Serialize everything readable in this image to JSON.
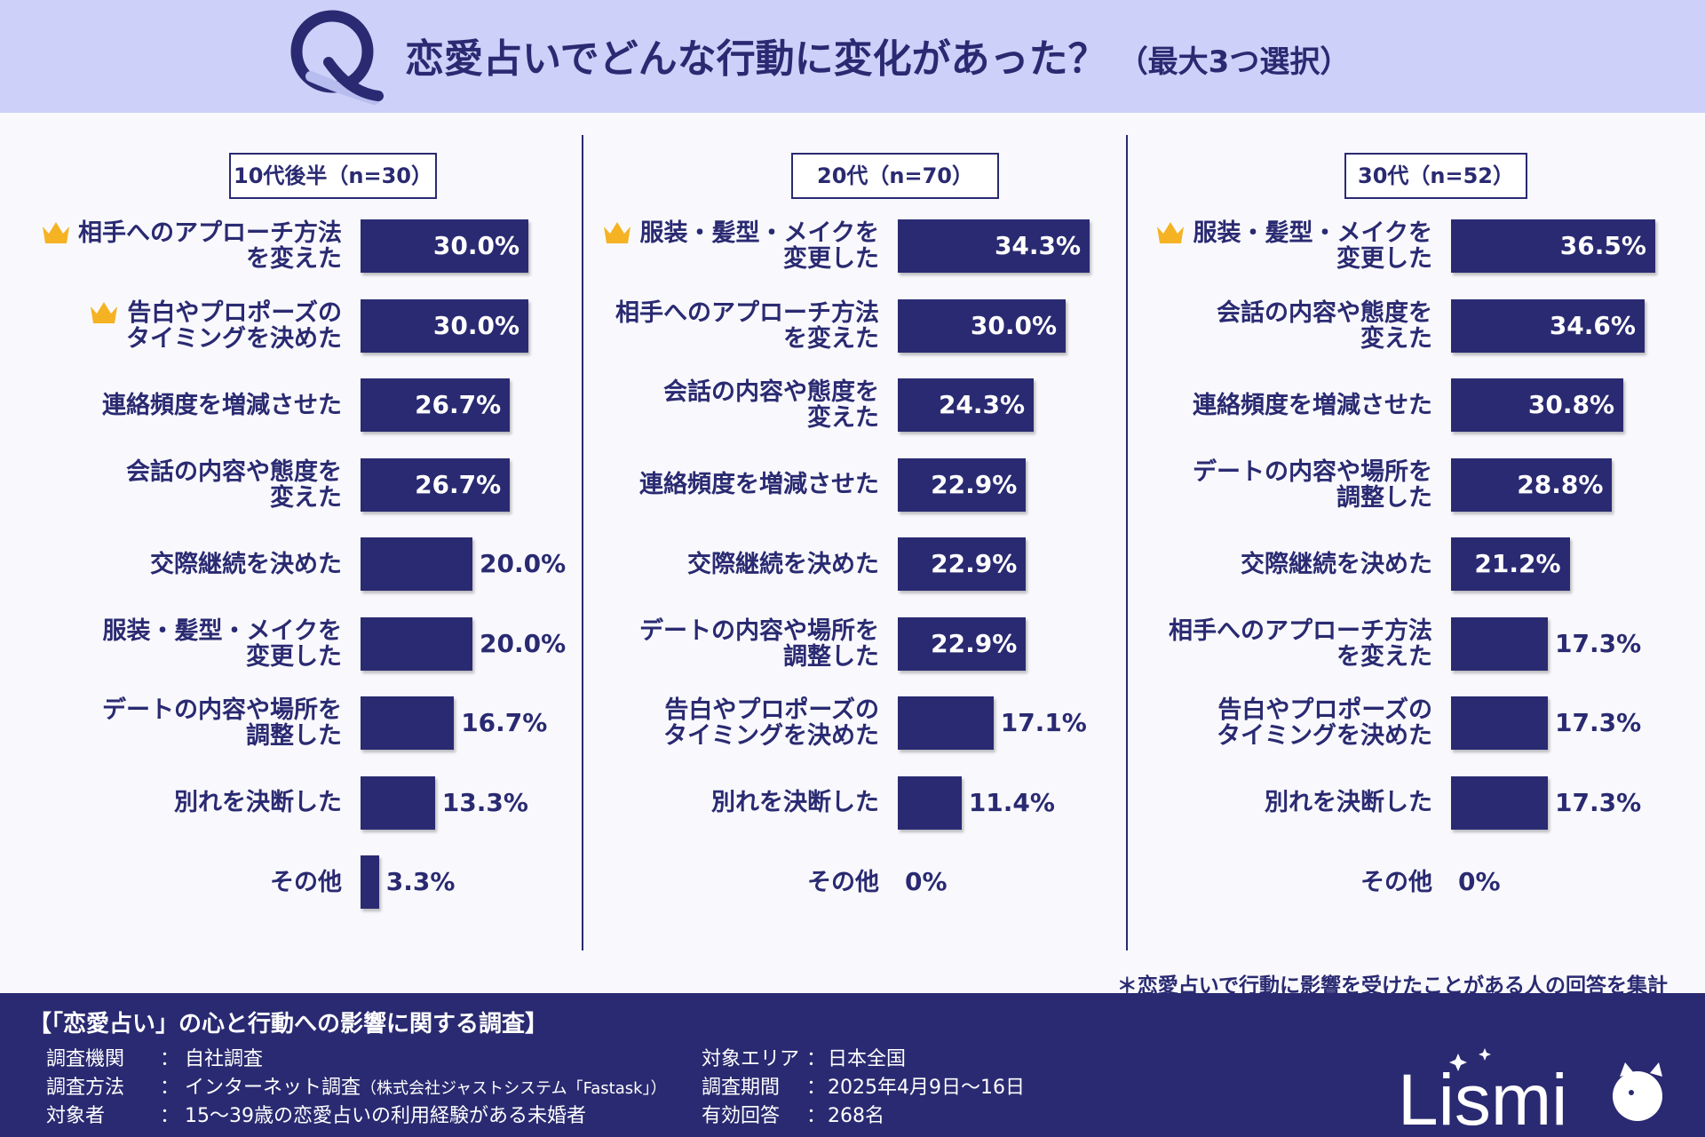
{
  "header": {
    "title": "恋愛占いでどんな行動に変化があった？",
    "subtitle": "（最大3つ選択）",
    "q_letter": "Q"
  },
  "note": "＊恋愛占いで行動に影響を受けたことがある人の回答を集計",
  "chart_data": [
    {
      "type": "bar",
      "orientation": "horizontal",
      "group": "10代後半（n=30）",
      "unit": "%",
      "categories": [
        "相手へのアプローチ方法\nを変えた",
        "告白やプロポーズの\nタイミングを決めた",
        "連絡頻度を増減させた",
        "会話の内容や態度を\n変えた",
        "交際継続を決めた",
        "服装・髪型・メイクを\n変更した",
        "デートの内容や場所を\n調整した",
        "別れを決断した",
        "その他"
      ],
      "values": [
        30.0,
        30.0,
        26.7,
        26.7,
        20.0,
        20.0,
        16.7,
        13.3,
        3.3
      ],
      "labels": [
        "30.0%",
        "30.0%",
        "26.7%",
        "26.7%",
        "20.0%",
        "20.0%",
        "16.7%",
        "13.3%",
        "3.3%"
      ],
      "top_ranked": [
        0,
        1
      ]
    },
    {
      "type": "bar",
      "orientation": "horizontal",
      "group": "20代（n=70）",
      "unit": "%",
      "categories": [
        "服装・髪型・メイクを\n変更した",
        "相手へのアプローチ方法\nを変えた",
        "会話の内容や態度を\n変えた",
        "連絡頻度を増減させた",
        "交際継続を決めた",
        "デートの内容や場所を\n調整した",
        "告白やプロポーズの\nタイミングを決めた",
        "別れを決断した",
        "その他"
      ],
      "values": [
        34.3,
        30.0,
        24.3,
        22.9,
        22.9,
        22.9,
        17.1,
        11.4,
        0
      ],
      "labels": [
        "34.3%",
        "30.0%",
        "24.3%",
        "22.9%",
        "22.9%",
        "22.9%",
        "17.1%",
        "11.4%",
        "0%"
      ],
      "top_ranked": [
        0
      ]
    },
    {
      "type": "bar",
      "orientation": "horizontal",
      "group": "30代（n=52）",
      "unit": "%",
      "categories": [
        "服装・髪型・メイクを\n変更した",
        "会話の内容や態度を\n変えた",
        "連絡頻度を増減させた",
        "デートの内容や場所を\n調整した",
        "交際継続を決めた",
        "相手へのアプローチ方法\nを変えた",
        "告白やプロポーズの\nタイミングを決めた",
        "別れを決断した",
        "その他"
      ],
      "values": [
        36.5,
        34.6,
        30.8,
        28.8,
        21.2,
        17.3,
        17.3,
        17.3,
        0
      ],
      "labels": [
        "36.5%",
        "34.6%",
        "30.8%",
        "28.8%",
        "21.2%",
        "17.3%",
        "17.3%",
        "17.3%",
        "0%"
      ],
      "top_ranked": [
        0
      ]
    }
  ],
  "footer": {
    "title": "【「恋愛占い」の心と行動への影響に関する調査】",
    "left": [
      {
        "key": "調査機関",
        "sep": "：",
        "value": "自社調査",
        "extra": ""
      },
      {
        "key": "調査方法",
        "sep": "：",
        "value": "インターネット調査",
        "extra": "（株式会社ジャストシステム「Fastask」）"
      },
      {
        "key": "対象者",
        "sep": "：",
        "value": "15～39歳の恋愛占いの利用経験がある未婚者",
        "extra": ""
      }
    ],
    "right": [
      {
        "key": "対象エリア",
        "sep": "：",
        "value": "日本全国"
      },
      {
        "key": "調査期間",
        "sep": "：",
        "value": "2025年4月9日～16日"
      },
      {
        "key": "有効回答",
        "sep": "：",
        "value": "268名"
      }
    ],
    "brand": "Lismi"
  },
  "colors": {
    "bar": "#2a2a72",
    "header_bg": "#cdd0f8",
    "crown": "#f5b324",
    "footer_bg": "#2a2a72"
  }
}
